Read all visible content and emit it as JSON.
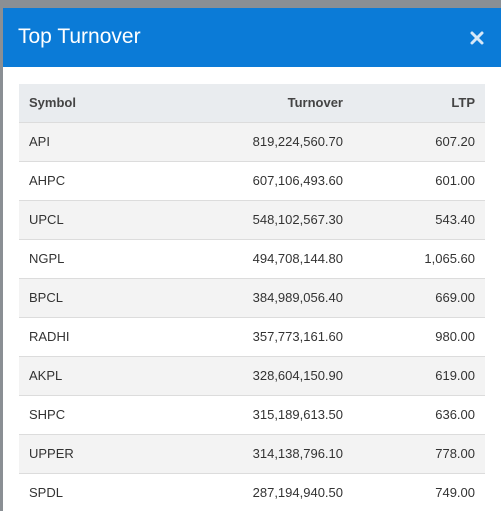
{
  "header": {
    "title": "Top Turnover"
  },
  "table": {
    "columns": [
      "Symbol",
      "Turnover",
      "LTP"
    ],
    "rows": [
      [
        "API",
        "819,224,560.70",
        "607.20"
      ],
      [
        "AHPC",
        "607,106,493.60",
        "601.00"
      ],
      [
        "UPCL",
        "548,102,567.30",
        "543.40"
      ],
      [
        "NGPL",
        "494,708,144.80",
        "1,065.60"
      ],
      [
        "BPCL",
        "384,989,056.40",
        "669.00"
      ],
      [
        "RADHI",
        "357,773,161.60",
        "980.00"
      ],
      [
        "AKPL",
        "328,604,150.90",
        "619.00"
      ],
      [
        "SHPC",
        "315,189,613.50",
        "636.00"
      ],
      [
        "UPPER",
        "314,138,796.10",
        "778.00"
      ],
      [
        "SPDL",
        "287,194,940.50",
        "749.00"
      ]
    ]
  }
}
